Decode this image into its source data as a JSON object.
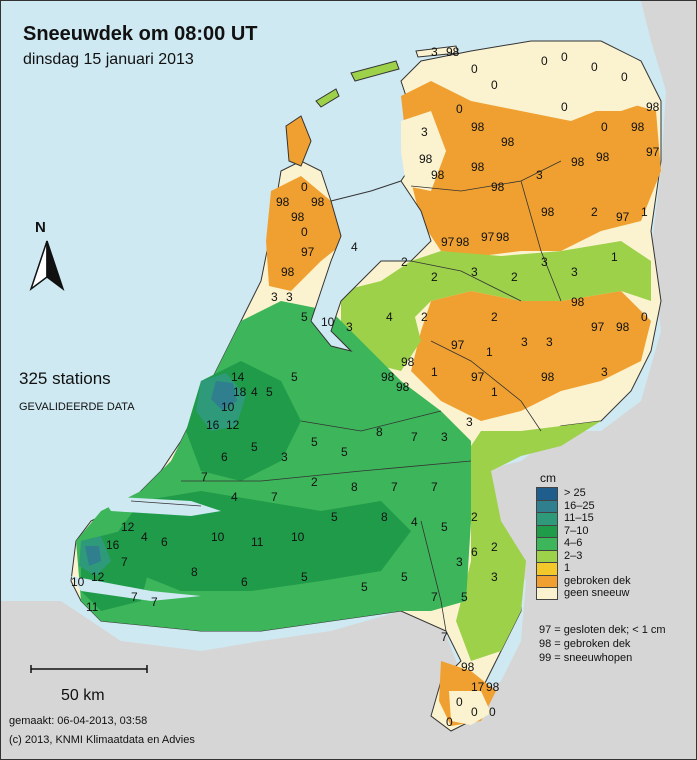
{
  "title": "Sneeuwdek om 08:00 UT",
  "subtitle": "dinsdag 15 januari 2013",
  "stations_count": "325 stations",
  "validated_note": "GEVALIDEERDE DATA",
  "north_label": "N",
  "scale_label": "50 km",
  "made_line": "gemaakt: 06-04-2013, 03:58",
  "copyright_line": "(c) 2013, KNMI Klimaatdata en Advies",
  "legend": {
    "unit": "cm",
    "items": [
      {
        "label": "> 25",
        "color": "#1f5d8c"
      },
      {
        "label": "16–25",
        "color": "#2f7f8f"
      },
      {
        "label": "11–15",
        "color": "#2e9a7a"
      },
      {
        "label": "7–10",
        "color": "#1f9b4a"
      },
      {
        "label": "4–6",
        "color": "#3db55a"
      },
      {
        "label": "2–3",
        "color": "#9dd14a"
      },
      {
        "label": "1",
        "color": "#f2c82a"
      },
      {
        "label": "gebroken dek",
        "color": "#f0a030"
      },
      {
        "label": "geen sneeuw",
        "color": "#fbf3d0"
      }
    ]
  },
  "codes": [
    "97 = gesloten dek; < 1 cm",
    "98 = gebroken dek",
    "99 = sneeuwhopen"
  ],
  "colors": {
    "sea": "#cfe9f2",
    "land_outside": "#d6d6d6",
    "border": "#333333"
  }
}
